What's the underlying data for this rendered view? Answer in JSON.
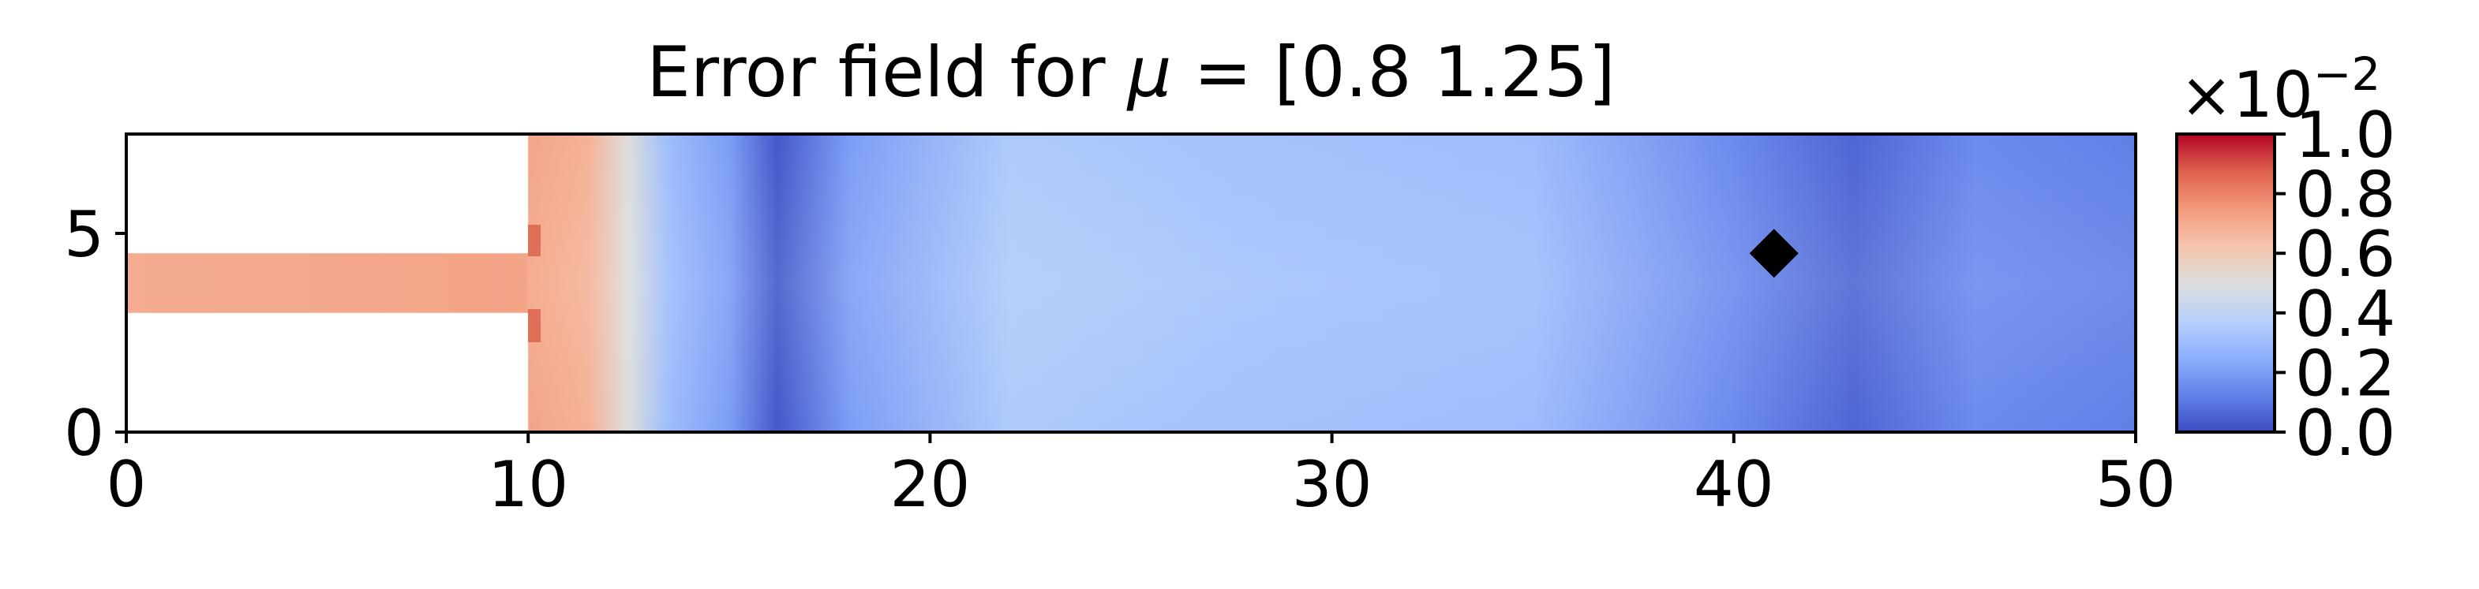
{
  "chart_data": {
    "type": "heatmap",
    "title": "Error field for μ = [0.8  1.25]",
    "title_parts": {
      "prefix": "Error field for ",
      "symbol": "μ",
      "suffix": " = [0.8  1.25]"
    },
    "xlabel": "",
    "ylabel": "",
    "xlim": [
      0,
      50
    ],
    "ylim": [
      0,
      7.5
    ],
    "x_ticks": [
      0,
      10,
      20,
      30,
      40,
      50
    ],
    "y_ticks": [
      0,
      5
    ],
    "x_tick_labels": [
      "0",
      "10",
      "20",
      "30",
      "40",
      "50"
    ],
    "y_tick_labels": [
      "0",
      "5"
    ],
    "colormap": "coolwarm",
    "colorbar": {
      "range": [
        0.0,
        1.0
      ],
      "ticks": [
        0.0,
        0.2,
        0.4,
        0.6,
        0.8,
        1.0
      ],
      "tick_labels": [
        "0.0",
        "0.2",
        "0.4",
        "0.6",
        "0.8",
        "1.0"
      ],
      "offset_text": {
        "base": "×10",
        "exponent": "−2"
      }
    },
    "domain": {
      "inlet_channel": {
        "x": [
          0,
          10
        ],
        "y": [
          3,
          4.5
        ]
      },
      "main_channel": {
        "x": [
          10,
          50
        ],
        "y": [
          0,
          7.5
        ]
      }
    },
    "field_profile_along_x": [
      {
        "x": 0,
        "value": 0.7
      },
      {
        "x": 10,
        "value": 0.72
      },
      {
        "x": 11.5,
        "value": 0.68
      },
      {
        "x": 12.5,
        "value": 0.5
      },
      {
        "x": 13.5,
        "value": 0.3
      },
      {
        "x": 15,
        "value": 0.2
      },
      {
        "x": 16.2,
        "value": 0.03
      },
      {
        "x": 18,
        "value": 0.2
      },
      {
        "x": 22,
        "value": 0.35
      },
      {
        "x": 28,
        "value": 0.32
      },
      {
        "x": 35,
        "value": 0.3
      },
      {
        "x": 40,
        "value": 0.15
      },
      {
        "x": 43,
        "value": 0.06
      },
      {
        "x": 46,
        "value": 0.15
      },
      {
        "x": 50,
        "value": 0.12
      }
    ],
    "marker": {
      "shape": "diamond",
      "x": 41,
      "y": 4.5,
      "color": "#000000"
    }
  }
}
